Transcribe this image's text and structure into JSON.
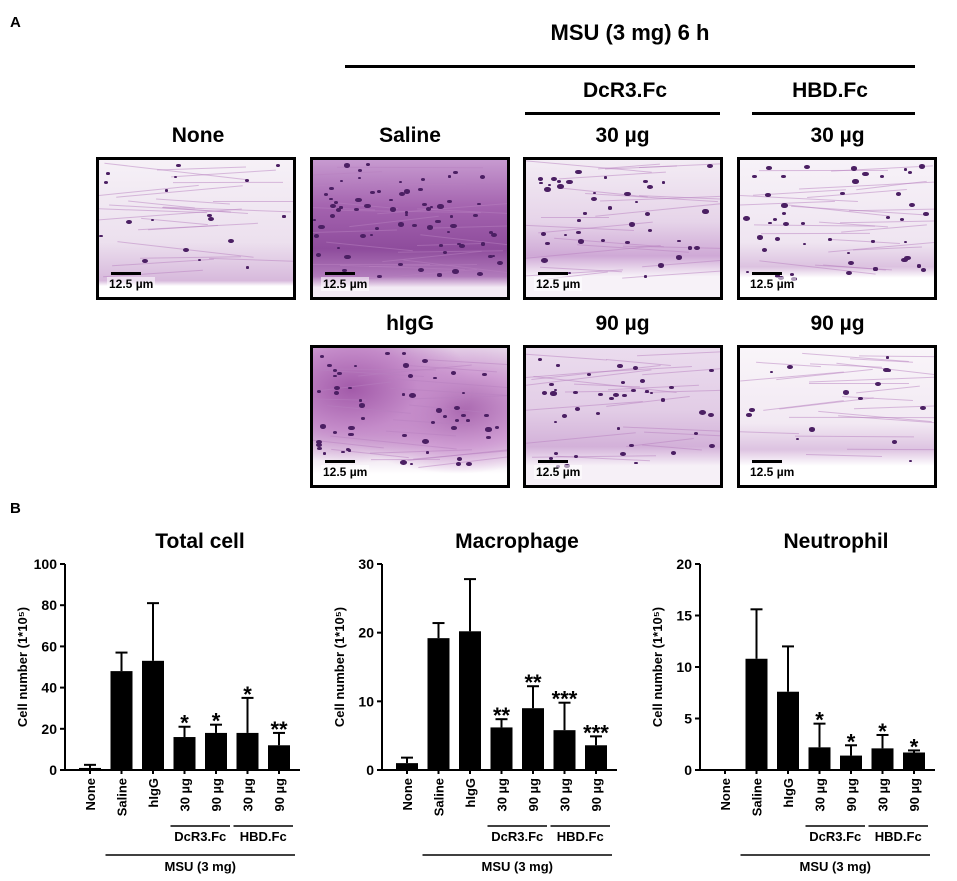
{
  "panel_a": {
    "letter": "A",
    "header_main": "MSU (3 mg)  6 h",
    "header_dcr3": "DcR3.Fc",
    "header_hbd": "HBD.Fc",
    "labels": {
      "none": "None",
      "saline": "Saline",
      "dcr3_30": "30 µg",
      "hbd_30": "30 µg",
      "higg": "hIgG",
      "dcr3_90": "90 µg",
      "hbd_90": "90 µg"
    },
    "scale_bar_text": "12.5 µm",
    "tissue_colors": {
      "light": "#eee4ef",
      "stain": "#b77fbf",
      "nuclei": "#4b1f63",
      "dense": "#9a56a6"
    }
  },
  "panel_b": {
    "letter": "B",
    "group_labels": {
      "dcr3": "DcR3.Fc",
      "hbd": "HBD.Fc",
      "msu": "MSU (3 mg)"
    }
  },
  "chart_data": [
    {
      "type": "bar",
      "title": "Total cell",
      "ylabel": "Cell number (1*10⁵)",
      "ylim": [
        0,
        100
      ],
      "yticks": [
        "0",
        "20",
        "40",
        "60",
        "80",
        "100"
      ],
      "categories": [
        "None",
        "Saline",
        "hIgG",
        "30 µg",
        "90 µg",
        "30 µg",
        "90 µg"
      ],
      "values": [
        1,
        48,
        53,
        16,
        18,
        18,
        12
      ],
      "errors": [
        1.5,
        9,
        28,
        5,
        4,
        17,
        6
      ],
      "annotations": [
        "",
        "",
        "",
        "*",
        "*",
        "*",
        "**"
      ]
    },
    {
      "type": "bar",
      "title": "Macrophage",
      "ylabel": "Cell number (1*10⁵)",
      "ylim": [
        0,
        30
      ],
      "yticks": [
        "0",
        "10",
        "20",
        "30"
      ],
      "categories": [
        "None",
        "Saline",
        "hIgG",
        "30 µg",
        "90 µg",
        "30 µg",
        "90 µg"
      ],
      "values": [
        1,
        19.2,
        20.2,
        6.2,
        9,
        5.8,
        3.6
      ],
      "errors": [
        0.8,
        2.2,
        7.6,
        1.2,
        3.2,
        4,
        1.3
      ],
      "annotations": [
        "",
        "",
        "",
        "**",
        "**",
        "***",
        "***"
      ]
    },
    {
      "type": "bar",
      "title": "Neutrophil",
      "ylabel": "Cell number (1*10⁵)",
      "ylim": [
        0,
        20
      ],
      "yticks": [
        "0",
        "5",
        "10",
        "15",
        "20"
      ],
      "categories": [
        "None",
        "Saline",
        "hIgG",
        "30 µg",
        "90 µg",
        "30 µg",
        "90 µg"
      ],
      "values": [
        0,
        10.8,
        7.6,
        2.2,
        1.4,
        2.1,
        1.7
      ],
      "errors": [
        0,
        4.8,
        4.4,
        2.3,
        1,
        1.3,
        0.2
      ],
      "annotations": [
        "",
        "",
        "",
        "*",
        "*",
        "*",
        "*"
      ]
    }
  ]
}
